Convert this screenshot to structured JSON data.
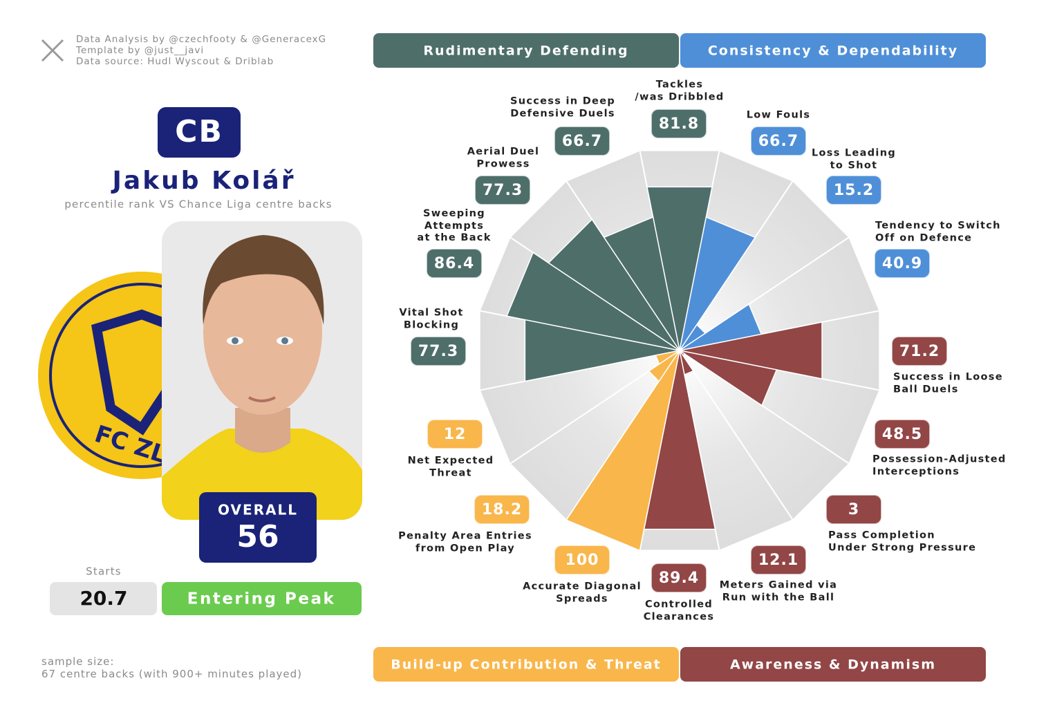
{
  "credits": [
    "Data Analysis by @czechfooty & @GeneracexG",
    "Template by @just__javi",
    "Data source: Hudl Wyscout & Driblab"
  ],
  "position": "CB",
  "player": "Jakub Kolář",
  "subtitle": "percentile rank VS Chance Liga centre backs",
  "club_logo_text": "FC ZLÍN",
  "overall_label": "OVERALL",
  "overall": 56,
  "starts_label": "Starts",
  "starts": 20.7,
  "status": "Entering Peak",
  "sample": [
    "sample size:",
    "67 centre backs (with 900+ minutes played)"
  ],
  "chart_data": {
    "type": "polar",
    "categories": [
      "Tackles\n/was Dribbled",
      "Low Fouls",
      "Loss Leading\nto Shot",
      "Tendency to Switch\nOff on Defence",
      "Success in Loose\nBall Duels",
      "Possession-Adjusted\nInterceptions",
      "Pass Completion\nUnder Strong Pressure",
      "Meters Gained via\nRun with the Ball",
      "Controlled\nClearances",
      "Accurate Diagonal\nSpreads",
      "Penalty Area Entries\nfrom Open Play",
      "Net Expected\nThreat",
      "Vital Shot\nBlocking",
      "Sweeping\nAttempts\nat the Back",
      "Aerial Duel\nProwess",
      "Success in Deep\nDefensive Duels"
    ],
    "values": [
      81.8,
      66.7,
      15.2,
      40.9,
      71.2,
      48.5,
      3,
      12.1,
      89.4,
      100,
      18.2,
      12,
      77.3,
      86.4,
      77.3,
      66.7
    ],
    "colors": [
      "#4e6e6a",
      "#4f8fd8",
      "#4f8fd8",
      "#4f8fd8",
      "#924646",
      "#924646",
      "#924646",
      "#924646",
      "#924646",
      "#f9b64b",
      "#f9b64b",
      "#f9b64b",
      "#4e6e6a",
      "#4e6e6a",
      "#4e6e6a",
      "#4e6e6a"
    ],
    "rlim": [
      0,
      100
    ],
    "legend": [
      {
        "name": "Rudimentary Defending",
        "color": "#4e6e6a"
      },
      {
        "name": "Consistency & Dependability",
        "color": "#4f8fd8"
      },
      {
        "name": "Build-up Contribution & Threat",
        "color": "#f9b64b"
      },
      {
        "name": "Awareness & Dynamism",
        "color": "#924646"
      }
    ]
  }
}
